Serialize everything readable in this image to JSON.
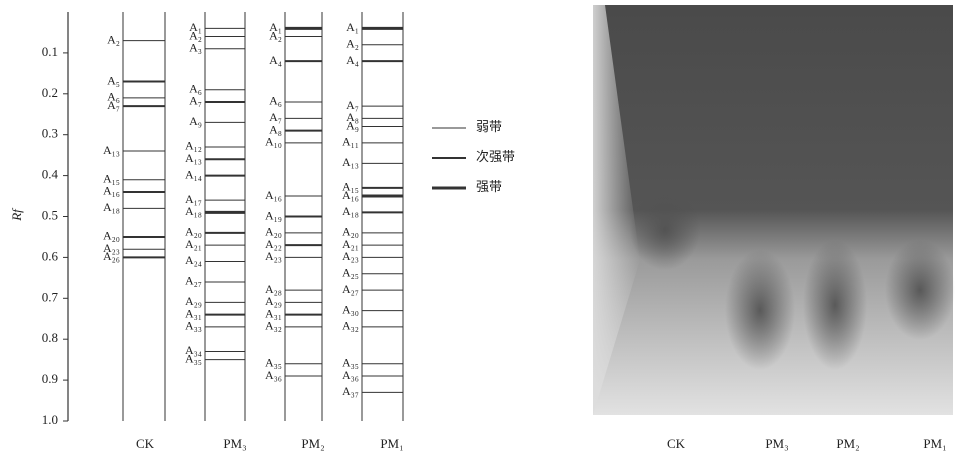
{
  "chart_data": {
    "type": "bands",
    "y_label": "Rf",
    "ylim": [
      0,
      1
    ],
    "yticks": [
      0.1,
      0.2,
      0.3,
      0.4,
      0.5,
      0.6,
      0.7,
      0.8,
      0.9,
      {
        "value": 1,
        "label": "1.0"
      }
    ],
    "legend": [
      {
        "name": "弱带",
        "width": 1
      },
      {
        "name": "次强带",
        "width": 2
      },
      {
        "name": "强带",
        "width": 3
      }
    ],
    "lanes": [
      {
        "name": "CK",
        "bands": [
          {
            "label": "A₂",
            "rf": 0.07,
            "strength": 1
          },
          {
            "label": "A₅",
            "rf": 0.17,
            "strength": 2
          },
          {
            "label": "A₆",
            "rf": 0.21,
            "strength": 1
          },
          {
            "label": "A₇",
            "rf": 0.23,
            "strength": 2
          },
          {
            "label": "A₁₃",
            "rf": 0.34,
            "strength": 1
          },
          {
            "label": "A₁₅",
            "rf": 0.41,
            "strength": 1
          },
          {
            "label": "A₁₆",
            "rf": 0.44,
            "strength": 2
          },
          {
            "label": "A₁₈",
            "rf": 0.48,
            "strength": 1
          },
          {
            "label": "A₂₀",
            "rf": 0.55,
            "strength": 2
          },
          {
            "label": "A₂₃",
            "rf": 0.58,
            "strength": 1
          },
          {
            "label": "A₂₆",
            "rf": 0.6,
            "strength": 2
          }
        ]
      },
      {
        "name": "PM₃",
        "bands": [
          {
            "label": "A₁",
            "rf": 0.04,
            "strength": 1
          },
          {
            "label": "A₂",
            "rf": 0.06,
            "strength": 1
          },
          {
            "label": "A₃",
            "rf": 0.09,
            "strength": 1
          },
          {
            "label": "A₆",
            "rf": 0.19,
            "strength": 1
          },
          {
            "label": "A₇",
            "rf": 0.22,
            "strength": 2
          },
          {
            "label": "A₉",
            "rf": 0.27,
            "strength": 1
          },
          {
            "label": "A₁₂",
            "rf": 0.33,
            "strength": 1
          },
          {
            "label": "A₁₃",
            "rf": 0.36,
            "strength": 2
          },
          {
            "label": "A₁₄",
            "rf": 0.4,
            "strength": 2
          },
          {
            "label": "A₁₇",
            "rf": 0.46,
            "strength": 1
          },
          {
            "label": "A₁₈",
            "rf": 0.49,
            "strength": 3
          },
          {
            "label": "A₂₀",
            "rf": 0.54,
            "strength": 2
          },
          {
            "label": "A₂₁",
            "rf": 0.57,
            "strength": 1
          },
          {
            "label": "A₂₄",
            "rf": 0.61,
            "strength": 1
          },
          {
            "label": "A₂₇",
            "rf": 0.66,
            "strength": 1
          },
          {
            "label": "A₂₉",
            "rf": 0.71,
            "strength": 1
          },
          {
            "label": "A₃₁",
            "rf": 0.74,
            "strength": 2
          },
          {
            "label": "A₃₃",
            "rf": 0.77,
            "strength": 1
          },
          {
            "label": "A₃₄",
            "rf": 0.83,
            "strength": 1
          },
          {
            "label": "A₃₅",
            "rf": 0.85,
            "strength": 1
          }
        ]
      },
      {
        "name": "PM₂",
        "bands": [
          {
            "label": "A₁",
            "rf": 0.04,
            "strength": 3
          },
          {
            "label": "A₂",
            "rf": 0.06,
            "strength": 1
          },
          {
            "label": "A₄",
            "rf": 0.12,
            "strength": 2
          },
          {
            "label": "A₆",
            "rf": 0.22,
            "strength": 1
          },
          {
            "label": "A₇",
            "rf": 0.26,
            "strength": 1
          },
          {
            "label": "A₈",
            "rf": 0.29,
            "strength": 2
          },
          {
            "label": "A₁₀",
            "rf": 0.32,
            "strength": 1
          },
          {
            "label": "A₁₆",
            "rf": 0.45,
            "strength": 1
          },
          {
            "label": "A₁₉",
            "rf": 0.5,
            "strength": 2
          },
          {
            "label": "A₂₀",
            "rf": 0.54,
            "strength": 1
          },
          {
            "label": "A₂₂",
            "rf": 0.57,
            "strength": 2
          },
          {
            "label": "A₂₃",
            "rf": 0.6,
            "strength": 1
          },
          {
            "label": "A₂₈",
            "rf": 0.68,
            "strength": 1
          },
          {
            "label": "A₂₉",
            "rf": 0.71,
            "strength": 1
          },
          {
            "label": "A₃₁",
            "rf": 0.74,
            "strength": 2
          },
          {
            "label": "A₃₂",
            "rf": 0.77,
            "strength": 1
          },
          {
            "label": "A₃₅",
            "rf": 0.86,
            "strength": 1
          },
          {
            "label": "A₃₆",
            "rf": 0.89,
            "strength": 1
          }
        ]
      },
      {
        "name": "PM₁",
        "bands": [
          {
            "label": "A₁",
            "rf": 0.04,
            "strength": 3
          },
          {
            "label": "A₂",
            "rf": 0.08,
            "strength": 1
          },
          {
            "label": "A₄",
            "rf": 0.12,
            "strength": 2
          },
          {
            "label": "A₇",
            "rf": 0.23,
            "strength": 1
          },
          {
            "label": "A₈",
            "rf": 0.26,
            "strength": 1
          },
          {
            "label": "A₉",
            "rf": 0.28,
            "strength": 1
          },
          {
            "label": "A₁₁",
            "rf": 0.32,
            "strength": 1
          },
          {
            "label": "A₁₃",
            "rf": 0.37,
            "strength": 1
          },
          {
            "label": "A₁₅",
            "rf": 0.43,
            "strength": 2
          },
          {
            "label": "A₁₆",
            "rf": 0.45,
            "strength": 3
          },
          {
            "label": "A₁₈",
            "rf": 0.49,
            "strength": 2
          },
          {
            "label": "A₂₀",
            "rf": 0.54,
            "strength": 1
          },
          {
            "label": "A₂₁",
            "rf": 0.57,
            "strength": 1
          },
          {
            "label": "A₂₃",
            "rf": 0.6,
            "strength": 1
          },
          {
            "label": "A₂₅",
            "rf": 0.64,
            "strength": 1
          },
          {
            "label": "A₂₇",
            "rf": 0.68,
            "strength": 1
          },
          {
            "label": "A₃₀",
            "rf": 0.73,
            "strength": 1
          },
          {
            "label": "A₃₂",
            "rf": 0.77,
            "strength": 1
          },
          {
            "label": "A₃₅",
            "rf": 0.86,
            "strength": 1
          },
          {
            "label": "A₃₆",
            "rf": 0.89,
            "strength": 1
          },
          {
            "label": "A₃₇",
            "rf": 0.93,
            "strength": 1
          }
        ]
      }
    ],
    "photo_labels": [
      "CK",
      "PM₃",
      "PM₂",
      "PM₁"
    ]
  }
}
